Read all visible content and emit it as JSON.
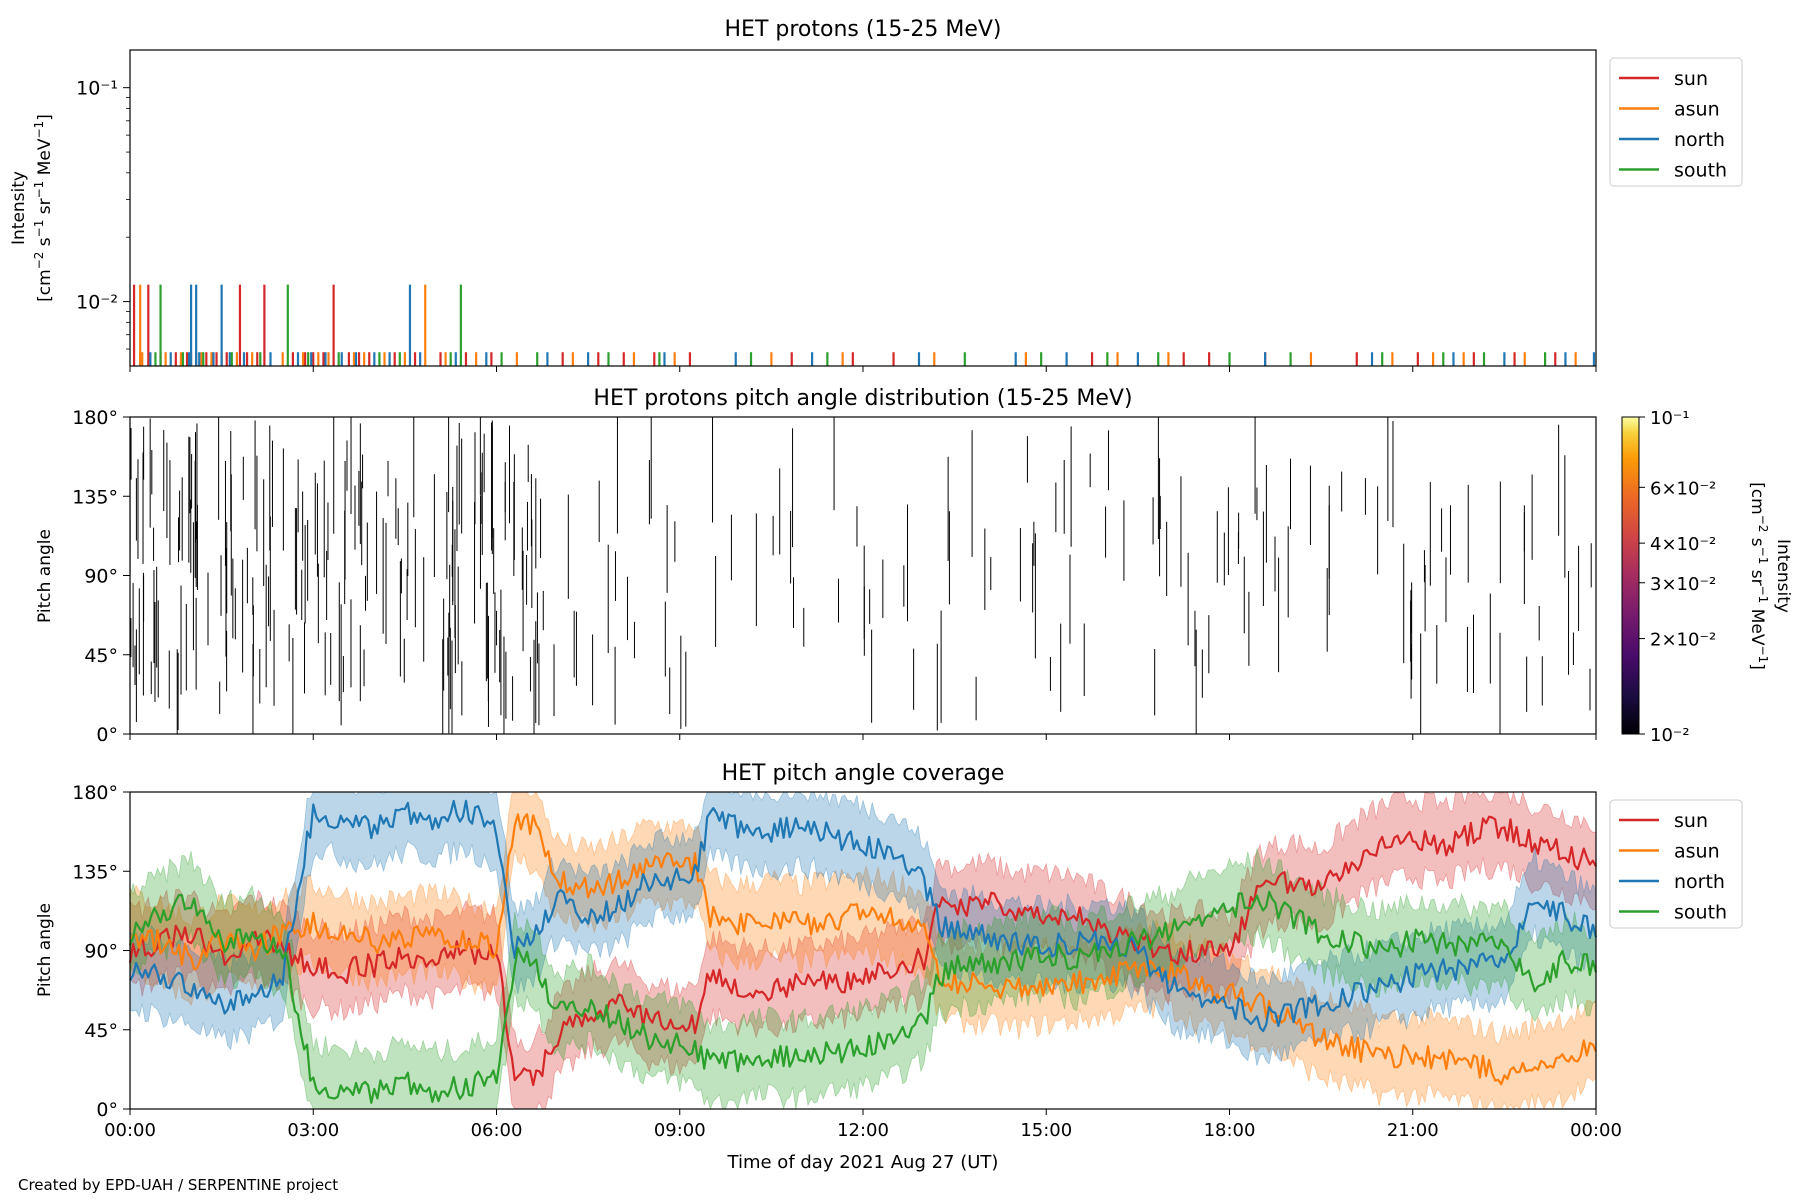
{
  "footer": {
    "credit": "Created by EPD-UAH / SERPENTINE project"
  },
  "colors": {
    "sun": "#d62728",
    "asun": "#ff7f0e",
    "north": "#1f77b4",
    "south": "#2ca02c"
  },
  "chart_data": [
    {
      "type": "line",
      "title": "HET protons (15-25 MeV)",
      "ylabel": "Intensity [cm⁻² s⁻¹ sr⁻¹ MeV⁻¹]",
      "yscale": "log",
      "ylim": [
        0.005,
        0.15
      ],
      "yticks": [
        {
          "value": 0.01,
          "label": "10⁻²"
        },
        {
          "value": 0.1,
          "label": "10⁻¹"
        }
      ],
      "xlim": [
        "2021-08-27 00:00",
        "2021-08-28 00:00"
      ],
      "legend": "upper right",
      "series": [
        {
          "name": "sun",
          "color": "#d62728",
          "spikes_high": [
            "00:04",
            "00:18",
            "01:48",
            "02:12",
            "03:20"
          ],
          "spikes_low": [
            "00:10",
            "00:30",
            "00:45",
            "00:56",
            "01:05",
            "01:15",
            "01:25",
            "01:35",
            "01:55",
            "02:05",
            "02:40",
            "02:52",
            "03:00",
            "03:10",
            "03:35",
            "03:45",
            "03:55",
            "04:20",
            "04:40",
            "05:05",
            "05:30",
            "05:55",
            "07:05",
            "07:40",
            "08:05",
            "08:35",
            "09:10",
            "10:50",
            "11:50",
            "12:30",
            "15:45",
            "17:15",
            "17:40",
            "18:35",
            "20:05",
            "21:05",
            "22:00",
            "22:40",
            "23:20"
          ]
        },
        {
          "name": "asun",
          "color": "#ff7f0e",
          "spikes_high": [
            "00:10",
            "04:50"
          ],
          "spikes_low": [
            "00:12",
            "00:35",
            "00:50",
            "01:00",
            "01:10",
            "01:20",
            "01:30",
            "01:45",
            "02:00",
            "02:30",
            "02:50",
            "03:05",
            "03:15",
            "03:40",
            "03:50",
            "04:10",
            "04:30",
            "05:10",
            "05:40",
            "06:20",
            "07:15",
            "08:15",
            "08:55",
            "10:30",
            "11:40",
            "13:10",
            "14:40",
            "16:10",
            "17:00",
            "19:20",
            "20:40",
            "21:20",
            "21:50",
            "22:50",
            "23:40"
          ]
        },
        {
          "name": "north",
          "color": "#1f77b4",
          "spikes_high": [
            "01:00",
            "01:05",
            "01:30",
            "04:35"
          ],
          "spikes_low": [
            "00:20",
            "00:40",
            "00:58",
            "01:08",
            "01:22",
            "01:38",
            "01:52",
            "02:18",
            "02:45",
            "02:58",
            "03:12",
            "03:28",
            "03:42",
            "04:00",
            "04:15",
            "04:45",
            "05:20",
            "05:50",
            "06:50",
            "07:30",
            "08:45",
            "09:55",
            "11:10",
            "12:55",
            "14:30",
            "15:20",
            "16:30",
            "18:35",
            "20:20",
            "21:40",
            "22:30",
            "23:30",
            "23:58"
          ]
        },
        {
          "name": "south",
          "color": "#2ca02c",
          "spikes_high": [
            "00:30",
            "02:35",
            "05:25"
          ],
          "spikes_low": [
            "00:25",
            "00:52",
            "01:12",
            "01:40",
            "02:08",
            "02:55",
            "03:25",
            "04:05",
            "04:25",
            "05:15",
            "06:05",
            "06:40",
            "07:50",
            "08:40",
            "10:10",
            "11:25",
            "13:40",
            "14:55",
            "16:00",
            "16:50",
            "18:00",
            "19:00",
            "20:30",
            "21:30",
            "22:10",
            "23:10"
          ]
        }
      ]
    },
    {
      "type": "heatmap",
      "title": "HET protons pitch angle distribution (15-25 MeV)",
      "ylabel": "Pitch angle",
      "ylim": [
        0,
        180
      ],
      "yticks": [
        "0°",
        "45°",
        "90°",
        "135°",
        "180°"
      ],
      "xlim": [
        "2021-08-27 00:00",
        "2021-08-28 00:00"
      ],
      "colorbar": {
        "label": "Intensity [cm⁻² s⁻¹ sr⁻¹ MeV⁻¹]",
        "scale": "log",
        "range": [
          0.01,
          0.1
        ],
        "ticks": [
          {
            "value": 0.01,
            "label": "10⁻²"
          },
          {
            "value": 0.02,
            "label": "2×10⁻²"
          },
          {
            "value": 0.03,
            "label": "3×10⁻²"
          },
          {
            "value": 0.04,
            "label": "4×10⁻²"
          },
          {
            "value": 0.06,
            "label": "6×10⁻²"
          },
          {
            "value": 0.1,
            "label": "10⁻¹"
          }
        ]
      }
    },
    {
      "type": "line",
      "title": "HET pitch angle coverage",
      "ylabel": "Pitch angle",
      "xlabel": "Time of day 2021 Aug 27 (UT)",
      "ylim": [
        0,
        180
      ],
      "yticks": [
        "0°",
        "45°",
        "90°",
        "135°",
        "180°"
      ],
      "xticks": [
        "00:00",
        "03:00",
        "06:00",
        "09:00",
        "12:00",
        "15:00",
        "18:00",
        "21:00",
        "00:00"
      ],
      "legend": "upper right",
      "band_halfwidth_deg": 22,
      "series": [
        {
          "name": "sun",
          "color": "#d62728",
          "x_hours": [
            0,
            0.5,
            1,
            1.5,
            2,
            2.5,
            3,
            3.5,
            4,
            4.5,
            5,
            5.5,
            6,
            6.3,
            6.6,
            7,
            7.5,
            8,
            8.5,
            9,
            9.25,
            9.5,
            10,
            10.5,
            11,
            11.5,
            12,
            12.5,
            13,
            13.25,
            13.5,
            14,
            14.5,
            15,
            15.5,
            16,
            16.5,
            17,
            17.5,
            18,
            18.5,
            19,
            19.5,
            20,
            20.5,
            21,
            21.5,
            22,
            22.5,
            23,
            23.5,
            24
          ],
          "values": [
            90,
            95,
            100,
            85,
            98,
            92,
            80,
            78,
            82,
            88,
            85,
            90,
            88,
            20,
            15,
            40,
            55,
            60,
            50,
            45,
            50,
            75,
            70,
            68,
            70,
            72,
            75,
            80,
            85,
            120,
            115,
            118,
            112,
            112,
            110,
            100,
            95,
            88,
            90,
            88,
            125,
            130,
            125,
            140,
            150,
            155,
            150,
            158,
            160,
            150,
            145,
            140
          ]
        },
        {
          "name": "asun",
          "color": "#ff7f0e",
          "x_hours": [
            0,
            0.5,
            1,
            1.5,
            2,
            2.5,
            3,
            3.5,
            4,
            4.5,
            5,
            5.5,
            6,
            6.3,
            6.6,
            7,
            7.5,
            8,
            8.5,
            9,
            9.25,
            9.5,
            10,
            10.5,
            11,
            11.5,
            12,
            12.5,
            13,
            13.25,
            13.5,
            14,
            14.5,
            15,
            15.5,
            16,
            16.5,
            17,
            17.5,
            18,
            18.5,
            19,
            19.5,
            20,
            20.5,
            21,
            21.5,
            22,
            22.5,
            23,
            23.5,
            24
          ],
          "values": [
            100,
            95,
            85,
            95,
            90,
            100,
            105,
            100,
            95,
            98,
            100,
            95,
            92,
            165,
            160,
            130,
            125,
            130,
            140,
            138,
            140,
            110,
            105,
            108,
            105,
            108,
            110,
            108,
            100,
            75,
            72,
            70,
            68,
            70,
            72,
            75,
            78,
            80,
            70,
            65,
            60,
            50,
            40,
            35,
            30,
            30,
            28,
            25,
            20,
            25,
            30,
            35
          ]
        },
        {
          "name": "north",
          "color": "#1f77b4",
          "x_hours": [
            0,
            0.5,
            1,
            1.5,
            2,
            2.5,
            3,
            3.5,
            4,
            4.5,
            5,
            5.5,
            6,
            6.3,
            6.6,
            7,
            7.5,
            8,
            8.5,
            9,
            9.25,
            9.5,
            10,
            10.5,
            11,
            11.5,
            12,
            12.5,
            13,
            13.25,
            13.5,
            14,
            14.5,
            15,
            15.5,
            16,
            16.5,
            17,
            17.5,
            18,
            18.5,
            19,
            19.5,
            20,
            20.5,
            21,
            21.5,
            22,
            22.5,
            23,
            23.5,
            24
          ],
          "values": [
            80,
            75,
            70,
            60,
            65,
            75,
            170,
            165,
            160,
            168,
            165,
            170,
            160,
            90,
            95,
            120,
            110,
            115,
            130,
            132,
            135,
            165,
            160,
            158,
            160,
            155,
            150,
            145,
            130,
            105,
            100,
            98,
            95,
            92,
            94,
            95,
            90,
            70,
            65,
            60,
            50,
            55,
            60,
            65,
            70,
            75,
            80,
            80,
            85,
            120,
            110,
            100
          ]
        },
        {
          "name": "south",
          "color": "#2ca02c",
          "x_hours": [
            0,
            0.5,
            1,
            1.5,
            2,
            2.5,
            3,
            3.5,
            4,
            4.5,
            5,
            5.5,
            6,
            6.3,
            6.6,
            7,
            7.5,
            8,
            8.5,
            9,
            9.25,
            9.5,
            10,
            10.5,
            11,
            11.5,
            12,
            12.5,
            13,
            13.25,
            13.5,
            14,
            14.5,
            15,
            15.5,
            16,
            16.5,
            17,
            17.5,
            18,
            18.5,
            19,
            19.5,
            20,
            20.5,
            21,
            21.5,
            22,
            22.5,
            23,
            23.5,
            24
          ],
          "values": [
            100,
            110,
            120,
            95,
            100,
            90,
            15,
            12,
            10,
            15,
            10,
            12,
            20,
            85,
            82,
            55,
            60,
            50,
            40,
            38,
            35,
            25,
            28,
            30,
            28,
            32,
            35,
            40,
            50,
            75,
            80,
            82,
            85,
            88,
            84,
            90,
            95,
            100,
            110,
            115,
            120,
            110,
            100,
            95,
            90,
            95,
            95,
            92,
            95,
            70,
            85,
            80
          ]
        }
      ]
    }
  ]
}
